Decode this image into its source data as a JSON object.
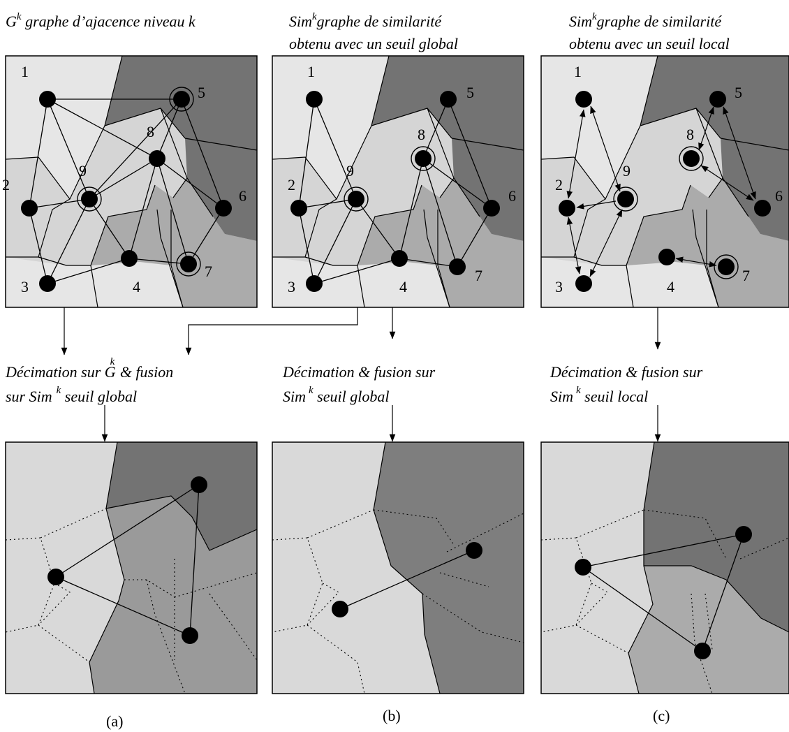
{
  "headings": {
    "a": {
      "base": "G",
      "sup": "k",
      "rest": " graphe d’ajacence niveau k"
    },
    "b": {
      "base": "Sim",
      "sup": "k",
      "rest": "graphe de similarité",
      "line2": "obtenu avec un seuil  global"
    },
    "c": {
      "base": "Sim",
      "sup": "k",
      "rest": "graphe de similarité",
      "line2": "obtenu avec un seuil  local"
    }
  },
  "nodes": [
    "1",
    "2",
    "3",
    "4",
    "5",
    "6",
    "7",
    "8",
    "9"
  ],
  "steps": {
    "a": {
      "l1": "Décimation sur G",
      "l1sup": "k",
      "l1b": " & fusion",
      "l2": "sur Sim",
      "l2sup": "k",
      "l2b": " seuil global"
    },
    "b": {
      "l1": "Décimation & fusion sur",
      "l2": "Sim",
      "l2sup": "k",
      "l2b": "  seuil  global"
    },
    "c": {
      "l1": "Décimation & fusion sur",
      "l2": "Sim",
      "l2sup": "k",
      "l2b": "  seuil local"
    }
  },
  "captions": [
    "(a)",
    "(b)",
    "(c)"
  ],
  "colors": {
    "light": "#e6e6e6",
    "mid": "#d5d5d5",
    "midDark": "#ababab",
    "dark": "#737373",
    "fusedMid": "#9a9a9a",
    "fusedDark": "#7e7e7e",
    "bottomLight": "#d9d9d9"
  }
}
